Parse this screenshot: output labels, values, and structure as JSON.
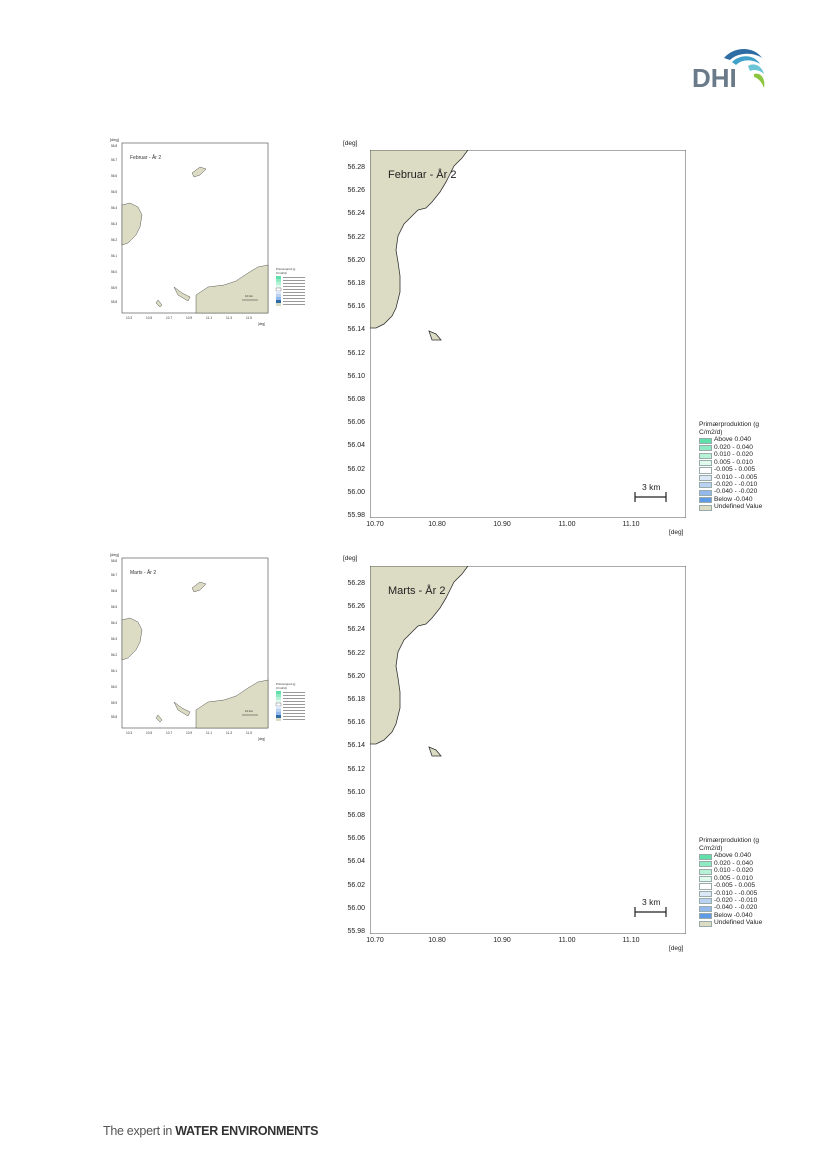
{
  "header": {
    "logo_text": "DHI",
    "logo_colors": [
      "#2e6da4",
      "#3fa0c9",
      "#6cc5d6",
      "#8cc63f"
    ]
  },
  "footer": {
    "prefix": "The expert in ",
    "brand": "WATER ENVIRONMENTS"
  },
  "maps": [
    {
      "title": "Februar - År 2",
      "unit_y": "[deg]",
      "unit_x": "[deg]",
      "y_ticks": [
        "56.28",
        "56.26",
        "56.24",
        "56.22",
        "56.20",
        "56.18",
        "56.16",
        "56.14",
        "56.12",
        "56.10",
        "56.08",
        "56.06",
        "56.04",
        "56.02",
        "56.00",
        "55.98"
      ],
      "x_ticks": [
        "10.70",
        "10.80",
        "10.90",
        "11.00",
        "11.10"
      ],
      "scale_label": "3 km",
      "legend_title": "Primærproduktion (g C/m2/d)",
      "legend": [
        {
          "label": "Above  0.040",
          "color": "#5fe0a9"
        },
        {
          "label": "0.020 -  0.040",
          "color": "#8eeac0"
        },
        {
          "label": "0.010 -  0.020",
          "color": "#b8f2d6"
        },
        {
          "label": "0.005 -  0.010",
          "color": "#dff9ec"
        },
        {
          "label": "-0.005 -  0.005",
          "color": "#ffffff"
        },
        {
          "label": "-0.010 - -0.005",
          "color": "#dce8f8"
        },
        {
          "label": "-0.020 - -0.010",
          "color": "#b9d2f2"
        },
        {
          "label": "-0.040 - -0.020",
          "color": "#92b8ec"
        },
        {
          "label": "Below  -0.040",
          "color": "#5f9ae4"
        },
        {
          "label": "Undefined Value",
          "color": "#dcdbc3"
        }
      ]
    },
    {
      "title": "Marts - År 2",
      "unit_y": "[deg]",
      "unit_x": "[deg]",
      "y_ticks": [
        "56.28",
        "56.26",
        "56.24",
        "56.22",
        "56.20",
        "56.18",
        "56.16",
        "56.14",
        "56.12",
        "56.10",
        "56.08",
        "56.06",
        "56.04",
        "56.02",
        "56.00",
        "55.98"
      ],
      "x_ticks": [
        "10.70",
        "10.80",
        "10.90",
        "11.00",
        "11.10"
      ],
      "scale_label": "3 km",
      "legend_title": "Primærproduktion (g C/m2/d)",
      "legend": [
        {
          "label": "Above  0.040",
          "color": "#5fe0a9"
        },
        {
          "label": "0.020 -  0.040",
          "color": "#8eeac0"
        },
        {
          "label": "0.010 -  0.020",
          "color": "#b8f2d6"
        },
        {
          "label": "0.005 -  0.010",
          "color": "#dff9ec"
        },
        {
          "label": "-0.005 -  0.005",
          "color": "#ffffff"
        },
        {
          "label": "-0.010 - -0.005",
          "color": "#dce8f8"
        },
        {
          "label": "-0.020 - -0.010",
          "color": "#b9d2f2"
        },
        {
          "label": "-0.040 - -0.020",
          "color": "#92b8ec"
        },
        {
          "label": "Below  -0.040",
          "color": "#5f9ae4"
        },
        {
          "label": "Undefined Value",
          "color": "#dcdbc3"
        }
      ]
    }
  ],
  "thumbnails": [
    {
      "title": "Februar - År 2"
    },
    {
      "title": "Marts - År 2"
    }
  ],
  "land_color": "#dcdbc3"
}
